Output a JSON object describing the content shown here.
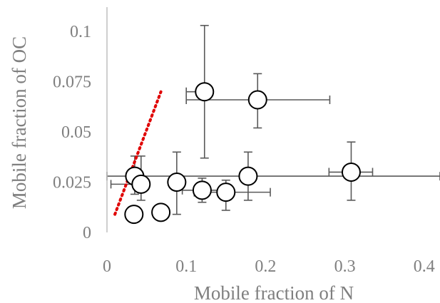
{
  "chart_data": {
    "type": "scatter",
    "xlabel": "Mobile fraction of N",
    "ylabel": "Mobile fraction of OC",
    "xlim": [
      0,
      0.42
    ],
    "ylim": [
      0,
      0.11
    ],
    "x_ticks": [
      "0",
      "0.1",
      "0.2",
      "0.3",
      "0.4"
    ],
    "x_tick_values": [
      0,
      0.1,
      0.2,
      0.3,
      0.4
    ],
    "y_ticks": [
      "0",
      "0.025",
      "0.05",
      "0.075",
      "0.1"
    ],
    "y_tick_values": [
      0,
      0.025,
      0.05,
      0.075,
      0.1
    ],
    "grid": false,
    "legend": "none",
    "marker": "open-circle",
    "points": [
      {
        "x": 0.123,
        "y": 0.07,
        "xerr": [
          0.1,
          0.123
        ],
        "yerr": [
          0.037,
          0.103
        ]
      },
      {
        "x": 0.19,
        "y": 0.066,
        "xerr": [
          0.1,
          0.281
        ],
        "yerr": [
          0.052,
          0.079
        ]
      },
      {
        "x": 0.035,
        "y": 0.028,
        "xerr": [
          0.0,
          0.42
        ],
        "yerr": [
          0.019,
          0.038
        ]
      },
      {
        "x": 0.043,
        "y": 0.024,
        "xerr": [
          0.005,
          0.043
        ],
        "yerr": [
          0.016,
          0.038
        ]
      },
      {
        "x": 0.034,
        "y": 0.009,
        "xerr": [
          0.034,
          0.034
        ],
        "yerr": [
          0.009,
          0.009
        ]
      },
      {
        "x": 0.068,
        "y": 0.01,
        "xerr": [
          0.068,
          0.068
        ],
        "yerr": [
          0.01,
          0.01
        ]
      },
      {
        "x": 0.088,
        "y": 0.025,
        "xerr": [
          0.088,
          0.088
        ],
        "yerr": [
          0.009,
          0.04
        ]
      },
      {
        "x": 0.12,
        "y": 0.021,
        "xerr": [
          0.095,
          0.153
        ],
        "yerr": [
          0.015,
          0.027
        ]
      },
      {
        "x": 0.15,
        "y": 0.02,
        "xerr": [
          0.11,
          0.206
        ],
        "yerr": [
          0.011,
          0.026
        ]
      },
      {
        "x": 0.178,
        "y": 0.028,
        "xerr": [
          0.178,
          0.178
        ],
        "yerr": [
          0.016,
          0.04
        ]
      },
      {
        "x": 0.308,
        "y": 0.03,
        "xerr": [
          0.28,
          0.335
        ],
        "yerr": [
          0.016,
          0.045
        ]
      }
    ],
    "trendline": {
      "style": "dotted",
      "color": "#e00000",
      "x": [
        0.01,
        0.068
      ],
      "y": [
        0.009,
        0.07
      ]
    }
  }
}
